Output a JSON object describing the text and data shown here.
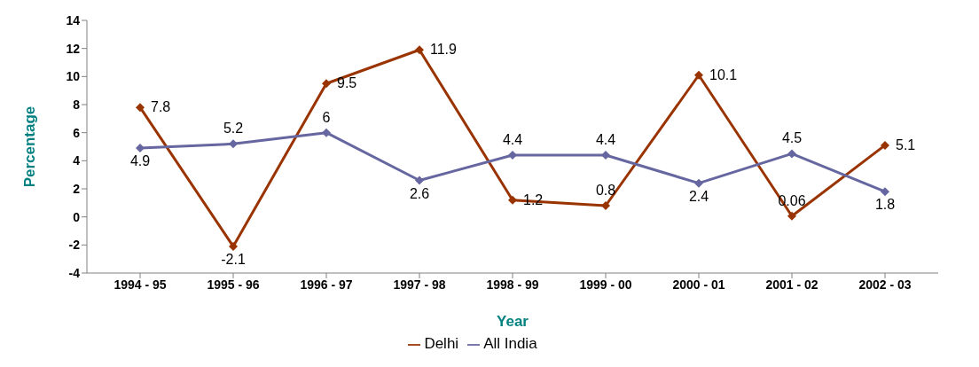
{
  "chart_data": {
    "type": "line",
    "xlabel": "Year",
    "ylabel": "Percentage",
    "categories": [
      "1994 - 95",
      "1995 - 96",
      "1996 - 97",
      "1997 - 98",
      "1998 - 99",
      "1999 - 00",
      "2000 - 01",
      "2001 - 02",
      "2002 - 03"
    ],
    "series": [
      {
        "name": "Delhi",
        "color": "#993300",
        "values": [
          7.8,
          -2.1,
          9.5,
          11.9,
          1.2,
          0.8,
          10.1,
          0.06,
          5.1
        ]
      },
      {
        "name": "All India",
        "color": "#6666a0",
        "values": [
          4.9,
          5.2,
          6,
          2.6,
          4.4,
          4.4,
          2.4,
          4.5,
          1.8
        ]
      }
    ],
    "ylim": [
      -4,
      14
    ],
    "yticks": [
      -4,
      -2,
      0,
      2,
      4,
      6,
      8,
      10,
      12,
      14
    ],
    "grid": false,
    "legend": "bottom",
    "marker": "diamond",
    "line_style": "solid",
    "data_labels": true
  }
}
